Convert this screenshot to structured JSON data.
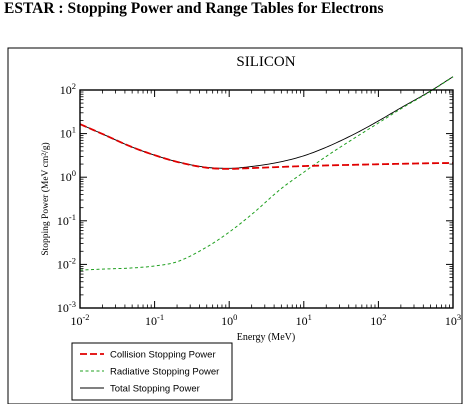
{
  "page": {
    "heading": "ESTAR : Stopping Power and Range Tables for Electrons"
  },
  "chart_data": {
    "type": "line",
    "title": "SILICON",
    "xlabel": "Energy (MeV)",
    "ylabel": "Stopping Power (MeV cm²/g)",
    "xscale": "log",
    "yscale": "log",
    "xlim": [
      0.01,
      1000
    ],
    "ylim": [
      0.001,
      100
    ],
    "x_ticks": [
      {
        "base": "10",
        "exp": "-2"
      },
      {
        "base": "10",
        "exp": "-1"
      },
      {
        "base": "10",
        "exp": "0"
      },
      {
        "base": "10",
        "exp": "1"
      },
      {
        "base": "10",
        "exp": "2"
      },
      {
        "base": "10",
        "exp": "3"
      }
    ],
    "y_ticks": [
      {
        "base": "10",
        "exp": "-3"
      },
      {
        "base": "10",
        "exp": "-2"
      },
      {
        "base": "10",
        "exp": "-1"
      },
      {
        "base": "10",
        "exp": "0"
      },
      {
        "base": "10",
        "exp": "1"
      },
      {
        "base": "10",
        "exp": "2"
      }
    ],
    "grid": false,
    "legend_position": "bottom-left outside",
    "x": [
      0.01,
      0.02,
      0.05,
      0.1,
      0.2,
      0.5,
      1,
      2,
      5,
      10,
      20,
      50,
      100,
      200,
      500,
      1000
    ],
    "series": [
      {
        "name": "Collision Stopping Power",
        "color": "#e00000",
        "dash": "dashed",
        "values": [
          16.5,
          9.8,
          4.9,
          3.2,
          2.25,
          1.65,
          1.55,
          1.62,
          1.72,
          1.8,
          1.86,
          1.93,
          1.98,
          2.03,
          2.09,
          2.12
        ]
      },
      {
        "name": "Radiative Stopping Power",
        "color": "#20a020",
        "dash": "dotted",
        "values": [
          0.0074,
          0.0078,
          0.0083,
          0.0092,
          0.0115,
          0.025,
          0.055,
          0.14,
          0.55,
          1.3,
          3.0,
          8.3,
          17.5,
          37,
          93,
          200
        ]
      },
      {
        "name": "Total Stopping Power",
        "color": "#000000",
        "dash": "solid",
        "values": [
          16.5,
          9.8,
          4.9,
          3.2,
          2.26,
          1.68,
          1.6,
          1.76,
          2.27,
          3.1,
          4.86,
          10.2,
          19.5,
          39,
          95,
          202
        ]
      }
    ]
  }
}
